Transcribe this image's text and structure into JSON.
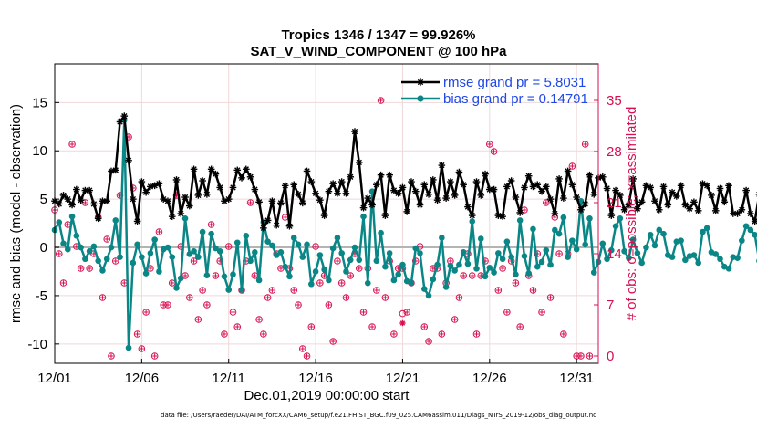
{
  "chart_data": {
    "type": "line",
    "title": "Tropics 1346 / 1347 = 99.926%",
    "subtitle": "SAT_V_WIND_COMPONENT @ 100 hPa",
    "xlabel": "Dec.01,2019 00:00:00 start",
    "ylabel": "rmse and bias (model - observation)",
    "y2label": "# of obs: o=possible; ×=assimilated",
    "footnote": "data file: /Users/raeder/DAI/ATM_forcXX/CAM6_setup/f.e21.FHIST_BGC.f09_025.CAM6assim.011/Diags_NTrS_2019-12/obs_diag_output.nc",
    "xticks": [
      "12/01",
      "12/06",
      "12/11",
      "12/16",
      "12/21",
      "12/26",
      "12/31"
    ],
    "xtick_days": [
      0,
      5,
      10,
      15,
      20,
      25,
      30
    ],
    "xlim": [
      0,
      31.25
    ],
    "yticks": [
      15,
      10,
      5,
      0,
      -5,
      -10
    ],
    "ylim": [
      -12,
      19
    ],
    "y2ticks": [
      35,
      28,
      21,
      14,
      7,
      0
    ],
    "y2lim": [
      -1,
      40
    ],
    "grid": true,
    "legend_position": "top-right",
    "colors": {
      "rmse": "#000000",
      "bias": "#0a8686",
      "obs": "#d8104f",
      "zero": "#b4b4b4",
      "grid": "#f0d8d8"
    },
    "series": [
      {
        "name": "rmse grand pr = 5.8031",
        "marker": "asterisk",
        "step": 0.25,
        "values": [
          4.8,
          4.5,
          5.4,
          5.0,
          4.4,
          6.0,
          4.9,
          5.9,
          5.9,
          4.5,
          3.0,
          4.8,
          4.8,
          7.9,
          8.0,
          13.0,
          13.6,
          9.0,
          5.0,
          2.7,
          6.8,
          5.7,
          6.3,
          6.4,
          6.6,
          5.0,
          4.8,
          3.2,
          7.0,
          3.5,
          5.2,
          4.3,
          8.1,
          5.4,
          6.9,
          5.5,
          8.1,
          7.6,
          6.2,
          4.8,
          5.0,
          6.2,
          8.0,
          7.2,
          8.1,
          7.3,
          6.0,
          4.7,
          2.0,
          2.8,
          4.8,
          2.3,
          4.6,
          6.4,
          2.2,
          6.5,
          5.5,
          4.6,
          7.9,
          6.8,
          5.6,
          4.9,
          3.3,
          5.8,
          6.6,
          5.6,
          6.8,
          5.6,
          7.3,
          12.0,
          8.8,
          4.1,
          5.1,
          4.4,
          6.5,
          7.5,
          3.3,
          7.5,
          5.9,
          5.6,
          6.2,
          3.7,
          6.8,
          5.8,
          4.4,
          6.5,
          5.5,
          7.0,
          4.9,
          8.5,
          5.1,
          6.8,
          5.4,
          7.8,
          6.5,
          4.2,
          3.3,
          6.8,
          5.4,
          7.6,
          6.0,
          6.0,
          3.3,
          3.2,
          6.3,
          6.9,
          5.2,
          3.6,
          6.2,
          7.4,
          6.3,
          6.5,
          5.8,
          6.3,
          5.0,
          3.5,
          7.1,
          5.1,
          7.9,
          6.5,
          5.2,
          3.9,
          4.5,
          7.5,
          5.5,
          7.2,
          7.3,
          6.1,
          3.3,
          5.9,
          5.4,
          3.9,
          4.4,
          7.1,
          4.0,
          4.7,
          6.4,
          6.2,
          4.8,
          3.9,
          6.3,
          4.4,
          5.7,
          5.3,
          6.4,
          4.4,
          4.0,
          4.7,
          3.8,
          6.6,
          6.4,
          5.4,
          3.8,
          6.1,
          4.7,
          6.4,
          3.5,
          3.5,
          3.9,
          5.9,
          3.5,
          2.7,
          5.5,
          5.6,
          8.7,
          3.8,
          4.3,
          4.0,
          3.5,
          4.6,
          6.5,
          7.8,
          7.2,
          6.0,
          7.5,
          6.1,
          11.8,
          10.6,
          5.9,
          5.6
        ]
      },
      {
        "name": "bias grand pr = 0.14791",
        "marker": "circle",
        "step": 0.25,
        "values": [
          1.8,
          2.6,
          0.4,
          -0.2,
          3.2,
          1.2,
          0.0,
          -1.2,
          -0.4,
          0.1,
          -1.4,
          -2.4,
          -1.2,
          0.0,
          2.8,
          -1.0,
          13.2,
          -10.4,
          -1.6,
          0.3,
          -1.0,
          -2.7,
          -0.6,
          0.8,
          -2.5,
          -0.2,
          0.0,
          -1.0,
          -4.2,
          -3.2,
          3.0,
          -0.7,
          -0.4,
          -1.0,
          1.6,
          -2.9,
          1.4,
          -0.1,
          -0.4,
          -3.0,
          -4.4,
          -2.8,
          0.5,
          -4.4,
          1.2,
          -1.4,
          -0.5,
          -3.4,
          2.6,
          0.6,
          0.2,
          -0.8,
          -0.5,
          -2.0,
          -3.0,
          1.0,
          0.3,
          -1.0,
          0.3,
          -3.8,
          -2.5,
          -0.8,
          -2.3,
          -3.4,
          -0.1,
          1.0,
          -0.6,
          -2.5,
          -1.3,
          0.0,
          -1.3,
          3.2,
          -3.7,
          5.8,
          -1.4,
          1.5,
          -2.0,
          -0.6,
          -3.4,
          -2.8,
          -1.8,
          -3.5,
          -3.7,
          -0.1,
          -0.6,
          -4.3,
          -5.0,
          -3.3,
          -1.8,
          1.0,
          -4.1,
          -1.9,
          -2.4,
          -1.8,
          -0.5,
          -1.7,
          2.7,
          -2.2,
          0.9,
          -3.0,
          -2.1,
          -2.6,
          -0.6,
          -1.2,
          0.6,
          -1.0,
          -2.8,
          2.8,
          -0.9,
          -2.7,
          1.9,
          -2.0,
          -1.5,
          -0.3,
          -1.8,
          1.8,
          1.4,
          3.1,
          -1.0,
          0.7,
          -0.2,
          4.8,
          0.3,
          3.0,
          -2.6,
          -1.5,
          0.4,
          -1.2,
          -0.3,
          2.2,
          3.0,
          -0.4,
          -1.1,
          0.8,
          -0.6,
          -1.6,
          0.0,
          1.3,
          0.2,
          1.8,
          1.4,
          -0.8,
          -1.0,
          0.6,
          0.7,
          -1.3,
          -0.9,
          -0.8,
          -1.6,
          1.6,
          2.0,
          -0.5,
          -0.7,
          -1.2,
          -2.0,
          -2.2,
          -1.0,
          -1.1,
          0.7,
          2.2,
          1.8,
          1.3,
          -1.4,
          0.2,
          1.7,
          0.4,
          -0.3,
          -3.8,
          -0.6,
          0.3,
          -1.3,
          -0.7,
          0.2,
          5.8,
          1.0,
          1.2,
          8.8,
          4.5,
          3.0,
          0.0
        ]
      },
      {
        "name": "# of obs",
        "axis": "right",
        "step": 0.25,
        "points": [
          [
            0,
            20
          ],
          [
            0.25,
            14
          ],
          [
            0.5,
            10
          ],
          [
            0.75,
            18
          ],
          [
            1,
            29
          ],
          [
            1.25,
            15
          ],
          [
            1.5,
            12
          ],
          [
            1.75,
            21
          ],
          [
            2,
            12
          ],
          [
            2.25,
            14
          ],
          [
            2.5,
            19
          ],
          [
            2.75,
            8
          ],
          [
            3,
            16
          ],
          [
            3.25,
            0
          ],
          [
            3.5,
            13
          ],
          [
            3.75,
            22
          ],
          [
            4,
            10
          ],
          [
            4.25,
            30
          ],
          [
            4.5,
            23
          ],
          [
            4.75,
            3
          ],
          [
            5,
            1
          ],
          [
            5.25,
            6
          ],
          [
            5.5,
            12
          ],
          [
            5.75,
            0
          ],
          [
            6,
            17
          ],
          [
            6.25,
            7
          ],
          [
            6.5,
            7
          ],
          [
            6.75,
            10
          ],
          [
            7,
            22
          ],
          [
            7.25,
            15
          ],
          [
            7.5,
            11
          ],
          [
            7.75,
            8
          ],
          [
            8,
            13
          ],
          [
            8.25,
            5
          ],
          [
            8.5,
            9
          ],
          [
            8.75,
            7
          ],
          [
            9,
            18
          ],
          [
            9.25,
            11
          ],
          [
            9.5,
            13
          ],
          [
            9.75,
            3
          ],
          [
            10,
            15
          ],
          [
            10.25,
            6
          ],
          [
            10.5,
            4
          ],
          [
            10.75,
            9
          ],
          [
            11,
            13
          ],
          [
            11.25,
            21
          ],
          [
            11.5,
            11
          ],
          [
            11.75,
            5
          ],
          [
            12,
            3
          ],
          [
            12.25,
            8
          ],
          [
            12.5,
            9
          ],
          [
            12.75,
            14
          ],
          [
            13,
            12
          ],
          [
            13.25,
            19
          ],
          [
            13.5,
            12
          ],
          [
            13.75,
            9
          ],
          [
            14,
            7
          ],
          [
            14.25,
            1
          ],
          [
            14.5,
            0
          ],
          [
            14.75,
            4
          ],
          [
            15,
            15
          ],
          [
            15.25,
            10
          ],
          [
            15.5,
            11
          ],
          [
            15.75,
            7
          ],
          [
            16,
            2
          ],
          [
            16.25,
            13
          ],
          [
            16.5,
            10
          ],
          [
            16.75,
            8
          ],
          [
            17,
            11
          ],
          [
            17.25,
            14
          ],
          [
            17.5,
            12
          ],
          [
            17.75,
            6
          ],
          [
            18,
            12
          ],
          [
            18.25,
            4
          ],
          [
            18.5,
            9
          ],
          [
            18.75,
            35
          ],
          [
            19,
            8
          ],
          [
            19.25,
            13
          ],
          [
            19.5,
            3
          ],
          [
            19.75,
            12
          ],
          [
            20,
            12
          ],
          [
            20.25,
            6
          ],
          [
            20.5,
            10
          ],
          [
            20.75,
            13
          ],
          [
            21,
            15
          ],
          [
            21.25,
            4
          ],
          [
            21.5,
            2
          ],
          [
            21.75,
            12
          ],
          [
            22,
            12
          ],
          [
            22.25,
            3
          ],
          [
            22.5,
            10
          ],
          [
            22.75,
            13
          ],
          [
            23,
            5
          ],
          [
            23.25,
            8
          ],
          [
            23.5,
            11
          ],
          [
            23.75,
            14
          ],
          [
            24,
            11
          ],
          [
            24.25,
            3
          ],
          [
            24.5,
            11
          ],
          [
            24.75,
            13
          ],
          [
            25,
            29
          ],
          [
            25.25,
            28
          ],
          [
            25.5,
            9
          ],
          [
            25.75,
            12
          ],
          [
            26,
            6
          ],
          [
            26.25,
            13
          ],
          [
            26.5,
            10
          ],
          [
            26.75,
            4
          ],
          [
            27,
            20
          ],
          [
            27.25,
            11
          ],
          [
            27.5,
            9
          ],
          [
            27.75,
            14
          ],
          [
            28,
            6
          ],
          [
            28.25,
            21
          ],
          [
            28.5,
            8
          ],
          [
            28.75,
            19
          ],
          [
            29,
            14
          ],
          [
            29.25,
            3
          ],
          [
            29.5,
            14
          ],
          [
            29.75,
            26
          ],
          [
            30,
            0
          ],
          [
            30.25,
            0
          ],
          [
            30.5,
            29
          ],
          [
            30.75,
            0
          ]
        ],
        "highlighted": [
          20,
          5.8
        ]
      }
    ]
  }
}
